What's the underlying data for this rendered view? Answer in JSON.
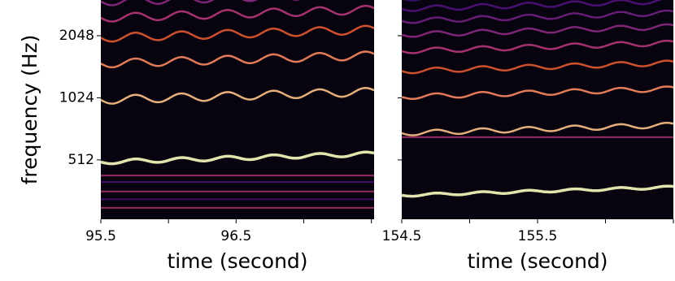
{
  "chart_data": [
    {
      "type": "spectrogram",
      "xlabel": "time (second)",
      "ylabel": "frequency (Hz)",
      "xlim": [
        95.5,
        97.52
      ],
      "xticks": [
        95.5,
        96.5
      ],
      "xminorticks": [
        96,
        97,
        97.5
      ],
      "ylim": [
        264,
        3050
      ],
      "yticks": [
        512,
        1024,
        2048
      ],
      "log_y": true,
      "log_base": 2
    },
    {
      "type": "spectrogram",
      "xlabel": "time (second)",
      "xlim": [
        154.5,
        156.5
      ],
      "xticks": [
        154.5,
        155.5
      ],
      "xminorticks": [
        155,
        156,
        156.5
      ],
      "ylim": [
        264,
        3050
      ],
      "yminorticks": [
        512,
        1024,
        2048
      ],
      "log_y": true,
      "log_base": 2
    }
  ]
}
